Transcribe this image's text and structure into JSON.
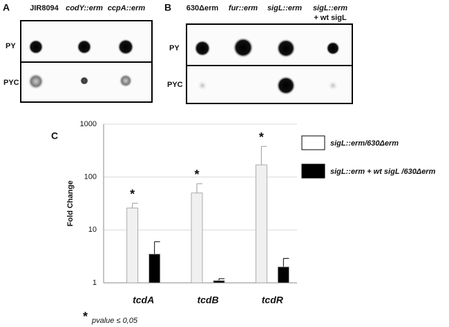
{
  "panel_a": {
    "label": "A",
    "columns": [
      "JIR8094",
      "codY::erm",
      "ccpA::erm"
    ],
    "rows": [
      "PY",
      "PYC"
    ]
  },
  "panel_b": {
    "label": "B",
    "columns": [
      "630Δerm",
      "fur::erm",
      "sigL::erm",
      "sigL::erm"
    ],
    "column_note": "+ wt sigL",
    "rows": [
      "PY",
      "PYC"
    ]
  },
  "chart_data": {
    "type": "bar",
    "label": "C",
    "y_label": "Fold Change",
    "log_scale": true,
    "categories": [
      "tcdA",
      "tcdB",
      "tcdR"
    ],
    "series": [
      {
        "name": "sigL::erm/630Δerm",
        "color": "#f0f0f0",
        "values": [
          26,
          50,
          170
        ],
        "errors": [
          6,
          25,
          210
        ]
      },
      {
        "name": "sigL::erm + wt sigL /630Δerm",
        "color": "#000000",
        "values": [
          3.5,
          1.1,
          2
        ],
        "errors": [
          2.5,
          0.1,
          0.9
        ]
      }
    ],
    "annotations": [
      "*",
      "*",
      "*"
    ],
    "footnote_symbol": "*",
    "footnote": "pvalue ≤ 0,05",
    "ylim": [
      1,
      1000
    ],
    "yticks": [
      1,
      10,
      100,
      1000
    ],
    "grid": true
  }
}
